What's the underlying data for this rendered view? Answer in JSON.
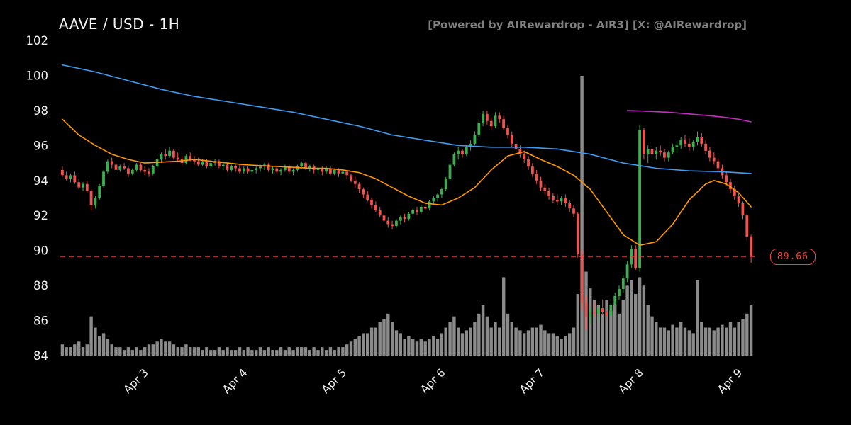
{
  "header": {
    "title": "AAVE / USD - 1H",
    "attribution": "[Powered by AIRewardrop - AIR3] [X: @AIRewardrop]"
  },
  "chart_data": {
    "type": "candlestick",
    "symbol": "AAVE/USD",
    "interval": "1H",
    "title": "AAVE / USD - 1H",
    "y_range": [
      84,
      102
    ],
    "y_ticks": [
      84,
      86,
      88,
      90,
      92,
      94,
      96,
      98,
      100,
      102
    ],
    "x_tick_labels": [
      "Apr 3",
      "Apr 4",
      "Apr 5",
      "Apr 6",
      "Apr 7",
      "Apr 8",
      "Apr 9"
    ],
    "x_tick_indices": [
      21,
      45,
      69,
      93,
      117,
      141,
      165
    ],
    "last_price": {
      "value": 89.66,
      "label": "89.66"
    },
    "candle_fields": [
      "open",
      "high",
      "low",
      "close",
      "volume_rel"
    ],
    "candles": [
      [
        94.6,
        94.8,
        94.2,
        94.3,
        4
      ],
      [
        94.3,
        94.5,
        94.0,
        94.1,
        3
      ],
      [
        94.1,
        94.4,
        93.9,
        94.3,
        3
      ],
      [
        94.3,
        94.5,
        93.8,
        93.9,
        4
      ],
      [
        93.9,
        94.1,
        93.5,
        93.6,
        5
      ],
      [
        93.6,
        93.9,
        93.4,
        93.8,
        3
      ],
      [
        93.8,
        94.0,
        93.3,
        93.4,
        4
      ],
      [
        93.4,
        93.5,
        92.3,
        92.6,
        14
      ],
      [
        92.6,
        93.1,
        92.4,
        93.0,
        10
      ],
      [
        93.0,
        93.8,
        92.9,
        93.7,
        7
      ],
      [
        93.7,
        94.6,
        93.6,
        94.5,
        8
      ],
      [
        94.5,
        95.2,
        94.4,
        95.1,
        6
      ],
      [
        95.1,
        95.3,
        94.7,
        94.9,
        4
      ],
      [
        94.9,
        95.0,
        94.4,
        94.6,
        3
      ],
      [
        94.6,
        94.9,
        94.5,
        94.8,
        3
      ],
      [
        94.8,
        95.0,
        94.6,
        94.7,
        2
      ],
      [
        94.7,
        94.8,
        94.2,
        94.4,
        3
      ],
      [
        94.4,
        94.7,
        94.3,
        94.6,
        2
      ],
      [
        94.6,
        95.0,
        94.5,
        94.9,
        3
      ],
      [
        94.9,
        95.0,
        94.5,
        94.6,
        2
      ],
      [
        94.6,
        94.8,
        94.3,
        94.5,
        3
      ],
      [
        94.5,
        94.7,
        94.2,
        94.4,
        4
      ],
      [
        94.4,
        94.9,
        94.3,
        94.8,
        4
      ],
      [
        94.8,
        95.3,
        94.7,
        95.2,
        5
      ],
      [
        95.2,
        95.6,
        95.0,
        95.5,
        6
      ],
      [
        95.5,
        95.8,
        95.2,
        95.4,
        5
      ],
      [
        95.4,
        95.9,
        95.3,
        95.7,
        5
      ],
      [
        95.7,
        95.8,
        95.2,
        95.3,
        4
      ],
      [
        95.3,
        95.6,
        95.1,
        95.2,
        3
      ],
      [
        95.2,
        95.4,
        94.9,
        95.0,
        3
      ],
      [
        95.0,
        95.5,
        94.9,
        95.4,
        4
      ],
      [
        95.4,
        95.6,
        95.1,
        95.2,
        3
      ],
      [
        95.2,
        95.4,
        94.9,
        95.1,
        3
      ],
      [
        95.1,
        95.3,
        94.8,
        94.9,
        3
      ],
      [
        94.9,
        95.2,
        94.8,
        95.1,
        2
      ],
      [
        95.1,
        95.2,
        94.7,
        94.8,
        3
      ],
      [
        94.8,
        95.1,
        94.7,
        95.0,
        2
      ],
      [
        95.0,
        95.2,
        94.8,
        95.1,
        2
      ],
      [
        95.1,
        95.2,
        94.7,
        94.8,
        3
      ],
      [
        94.8,
        95.0,
        94.6,
        94.9,
        2
      ],
      [
        94.9,
        95.0,
        94.5,
        94.6,
        3
      ],
      [
        94.6,
        94.9,
        94.5,
        94.8,
        2
      ],
      [
        94.8,
        94.9,
        94.5,
        94.7,
        2
      ],
      [
        94.7,
        94.9,
        94.4,
        94.5,
        3
      ],
      [
        94.5,
        94.8,
        94.4,
        94.7,
        2
      ],
      [
        94.7,
        94.8,
        94.4,
        94.5,
        3
      ],
      [
        94.5,
        94.7,
        94.3,
        94.6,
        2
      ],
      [
        94.6,
        94.8,
        94.4,
        94.7,
        2
      ],
      [
        94.7,
        94.9,
        94.5,
        94.8,
        3
      ],
      [
        94.8,
        95.0,
        94.6,
        94.9,
        2
      ],
      [
        94.9,
        95.0,
        94.5,
        94.6,
        3
      ],
      [
        94.6,
        94.8,
        94.4,
        94.7,
        2
      ],
      [
        94.7,
        94.8,
        94.4,
        94.5,
        2
      ],
      [
        94.5,
        94.7,
        94.3,
        94.6,
        3
      ],
      [
        94.6,
        94.9,
        94.5,
        94.8,
        2
      ],
      [
        94.8,
        94.9,
        94.4,
        94.5,
        3
      ],
      [
        94.5,
        94.7,
        94.3,
        94.6,
        2
      ],
      [
        94.6,
        94.9,
        94.5,
        94.8,
        3
      ],
      [
        94.8,
        95.1,
        94.7,
        95.0,
        3
      ],
      [
        95.0,
        95.1,
        94.6,
        94.7,
        3
      ],
      [
        94.7,
        94.9,
        94.5,
        94.8,
        2
      ],
      [
        94.8,
        94.9,
        94.4,
        94.6,
        3
      ],
      [
        94.6,
        94.8,
        94.4,
        94.7,
        2
      ],
      [
        94.7,
        94.8,
        94.3,
        94.5,
        3
      ],
      [
        94.5,
        94.8,
        94.4,
        94.7,
        2
      ],
      [
        94.7,
        94.8,
        94.3,
        94.4,
        3
      ],
      [
        94.4,
        94.7,
        94.3,
        94.6,
        2
      ],
      [
        94.6,
        94.7,
        94.2,
        94.4,
        3
      ],
      [
        94.4,
        94.6,
        94.2,
        94.5,
        3
      ],
      [
        94.5,
        94.6,
        94.1,
        94.3,
        4
      ],
      [
        94.3,
        94.4,
        93.9,
        94.0,
        5
      ],
      [
        94.0,
        94.2,
        93.6,
        93.8,
        6
      ],
      [
        93.8,
        93.9,
        93.3,
        93.5,
        7
      ],
      [
        93.5,
        93.6,
        93.0,
        93.2,
        8
      ],
      [
        93.2,
        93.4,
        92.8,
        92.9,
        8
      ],
      [
        92.9,
        93.0,
        92.4,
        92.6,
        10
      ],
      [
        92.6,
        92.8,
        92.2,
        92.3,
        10
      ],
      [
        92.3,
        92.5,
        91.9,
        92.0,
        12
      ],
      [
        92.0,
        92.1,
        91.5,
        91.7,
        13
      ],
      [
        91.7,
        91.9,
        91.3,
        91.5,
        15
      ],
      [
        91.5,
        91.7,
        91.2,
        91.4,
        12
      ],
      [
        91.4,
        91.8,
        91.3,
        91.7,
        9
      ],
      [
        91.7,
        92.0,
        91.5,
        91.9,
        8
      ],
      [
        91.9,
        92.1,
        91.6,
        91.8,
        6
      ],
      [
        91.8,
        92.2,
        91.7,
        92.1,
        7
      ],
      [
        92.1,
        92.4,
        92.0,
        92.3,
        6
      ],
      [
        92.3,
        92.5,
        92.0,
        92.2,
        5
      ],
      [
        92.2,
        92.6,
        92.1,
        92.5,
        6
      ],
      [
        92.5,
        92.8,
        92.3,
        92.4,
        5
      ],
      [
        92.4,
        92.9,
        92.3,
        92.8,
        6
      ],
      [
        92.8,
        93.1,
        92.6,
        93.0,
        7
      ],
      [
        93.0,
        93.3,
        92.8,
        93.2,
        6
      ],
      [
        93.2,
        93.6,
        93.0,
        93.5,
        8
      ],
      [
        93.5,
        94.2,
        93.4,
        94.1,
        10
      ],
      [
        94.1,
        95.0,
        94.0,
        94.9,
        12
      ],
      [
        94.9,
        95.6,
        94.8,
        95.5,
        14
      ],
      [
        95.5,
        95.9,
        95.2,
        95.7,
        10
      ],
      [
        95.7,
        95.8,
        95.3,
        95.5,
        8
      ],
      [
        95.5,
        96.0,
        95.4,
        95.9,
        9
      ],
      [
        95.9,
        96.3,
        95.7,
        96.1,
        10
      ],
      [
        96.1,
        96.8,
        96.0,
        96.6,
        12
      ],
      [
        96.6,
        97.5,
        96.5,
        97.3,
        15
      ],
      [
        97.3,
        98.0,
        97.1,
        97.8,
        18
      ],
      [
        97.8,
        98.0,
        97.2,
        97.4,
        14
      ],
      [
        97.4,
        97.6,
        96.9,
        97.1,
        10
      ],
      [
        97.1,
        97.9,
        97.0,
        97.7,
        12
      ],
      [
        97.7,
        97.9,
        97.3,
        97.5,
        10
      ],
      [
        97.5,
        97.7,
        96.9,
        97.0,
        28
      ],
      [
        97.0,
        97.2,
        96.4,
        96.6,
        15
      ],
      [
        96.6,
        96.8,
        95.9,
        96.1,
        12
      ],
      [
        96.1,
        96.3,
        95.6,
        95.8,
        10
      ],
      [
        95.8,
        96.0,
        95.3,
        95.5,
        9
      ],
      [
        95.5,
        95.7,
        95.0,
        95.2,
        8
      ],
      [
        95.2,
        95.4,
        94.6,
        94.8,
        9
      ],
      [
        94.8,
        95.0,
        94.2,
        94.4,
        10
      ],
      [
        94.4,
        94.6,
        93.8,
        94.0,
        10
      ],
      [
        94.0,
        94.2,
        93.4,
        93.6,
        11
      ],
      [
        93.6,
        93.8,
        93.2,
        93.4,
        9
      ],
      [
        93.4,
        93.6,
        92.9,
        93.1,
        8
      ],
      [
        93.1,
        93.3,
        92.7,
        92.9,
        8
      ],
      [
        92.9,
        93.2,
        92.6,
        92.8,
        7
      ],
      [
        92.8,
        93.1,
        92.6,
        93.0,
        6
      ],
      [
        93.0,
        93.2,
        92.5,
        92.7,
        7
      ],
      [
        92.7,
        92.9,
        92.2,
        92.4,
        8
      ],
      [
        92.4,
        92.6,
        91.9,
        92.1,
        10
      ],
      [
        92.1,
        92.2,
        89.6,
        89.8,
        22
      ],
      [
        89.8,
        90.0,
        86.6,
        87.0,
        100
      ],
      [
        87.0,
        87.4,
        85.5,
        86.2,
        30
      ],
      [
        86.2,
        86.8,
        85.8,
        86.5,
        24
      ],
      [
        86.5,
        87.0,
        86.2,
        86.4,
        20
      ],
      [
        86.4,
        86.9,
        86.0,
        86.7,
        18
      ],
      [
        86.7,
        87.2,
        86.3,
        86.5,
        15
      ],
      [
        86.5,
        86.8,
        86.0,
        86.3,
        20
      ],
      [
        86.3,
        87.0,
        86.2,
        86.9,
        16
      ],
      [
        86.9,
        87.6,
        86.7,
        87.4,
        18
      ],
      [
        87.4,
        88.0,
        87.2,
        87.8,
        15
      ],
      [
        87.8,
        88.6,
        87.6,
        88.4,
        20
      ],
      [
        88.4,
        89.4,
        88.2,
        89.2,
        25
      ],
      [
        89.2,
        90.3,
        89.0,
        90.1,
        27
      ],
      [
        90.1,
        90.3,
        88.9,
        89.0,
        22
      ],
      [
        89.0,
        97.2,
        88.8,
        96.9,
        28
      ],
      [
        96.9,
        97.0,
        95.2,
        95.5,
        25
      ],
      [
        95.5,
        96.0,
        95.0,
        95.8,
        18
      ],
      [
        95.8,
        96.1,
        95.3,
        95.5,
        14
      ],
      [
        95.5,
        95.9,
        95.2,
        95.7,
        12
      ],
      [
        95.7,
        96.0,
        95.4,
        95.6,
        10
      ],
      [
        95.6,
        95.8,
        95.1,
        95.3,
        10
      ],
      [
        95.3,
        95.7,
        95.1,
        95.6,
        9
      ],
      [
        95.6,
        96.1,
        95.5,
        95.9,
        11
      ],
      [
        95.9,
        96.2,
        95.6,
        96.0,
        10
      ],
      [
        96.0,
        96.5,
        95.8,
        96.3,
        12
      ],
      [
        96.3,
        96.6,
        95.9,
        96.1,
        10
      ],
      [
        96.1,
        96.4,
        95.7,
        95.9,
        9
      ],
      [
        95.9,
        96.3,
        95.7,
        96.2,
        8
      ],
      [
        96.2,
        96.8,
        96.0,
        96.5,
        27
      ],
      [
        96.5,
        96.7,
        95.9,
        96.1,
        12
      ],
      [
        96.1,
        96.3,
        95.5,
        95.7,
        10
      ],
      [
        95.7,
        95.9,
        95.1,
        95.3,
        10
      ],
      [
        95.3,
        95.6,
        94.9,
        95.1,
        9
      ],
      [
        95.1,
        95.3,
        94.5,
        94.7,
        10
      ],
      [
        94.7,
        94.9,
        94.1,
        94.3,
        11
      ],
      [
        94.3,
        94.5,
        93.7,
        93.9,
        10
      ],
      [
        93.9,
        94.1,
        93.3,
        93.5,
        12
      ],
      [
        93.5,
        93.7,
        92.9,
        93.1,
        10
      ],
      [
        93.1,
        93.3,
        92.5,
        92.7,
        12
      ],
      [
        92.7,
        92.8,
        91.8,
        92.0,
        13
      ],
      [
        92.0,
        92.1,
        90.6,
        90.8,
        15
      ],
      [
        90.8,
        90.9,
        89.3,
        89.66,
        18
      ]
    ],
    "overlays": [
      {
        "name": "ma-slow-blue",
        "color": "#3d9df3",
        "points": [
          [
            0,
            100.6
          ],
          [
            8,
            100.2
          ],
          [
            16,
            99.7
          ],
          [
            24,
            99.2
          ],
          [
            32,
            98.8
          ],
          [
            40,
            98.5
          ],
          [
            48,
            98.2
          ],
          [
            56,
            97.9
          ],
          [
            64,
            97.5
          ],
          [
            72,
            97.1
          ],
          [
            80,
            96.6
          ],
          [
            88,
            96.3
          ],
          [
            96,
            96.0
          ],
          [
            104,
            95.9
          ],
          [
            112,
            95.9
          ],
          [
            120,
            95.8
          ],
          [
            128,
            95.5
          ],
          [
            136,
            95.0
          ],
          [
            144,
            94.7
          ],
          [
            152,
            94.55
          ],
          [
            160,
            94.5
          ],
          [
            167,
            94.4
          ]
        ]
      },
      {
        "name": "ma-fast-orange",
        "color": "#ff9800",
        "points": [
          [
            0,
            97.5
          ],
          [
            4,
            96.6
          ],
          [
            8,
            96.0
          ],
          [
            12,
            95.5
          ],
          [
            16,
            95.2
          ],
          [
            20,
            95.0
          ],
          [
            24,
            95.05
          ],
          [
            28,
            95.1
          ],
          [
            32,
            95.2
          ],
          [
            36,
            95.1
          ],
          [
            40,
            95.0
          ],
          [
            44,
            94.9
          ],
          [
            48,
            94.85
          ],
          [
            52,
            94.8
          ],
          [
            56,
            94.75
          ],
          [
            60,
            94.7
          ],
          [
            64,
            94.7
          ],
          [
            68,
            94.6
          ],
          [
            72,
            94.45
          ],
          [
            76,
            94.1
          ],
          [
            80,
            93.6
          ],
          [
            84,
            93.1
          ],
          [
            88,
            92.7
          ],
          [
            92,
            92.6
          ],
          [
            96,
            93.0
          ],
          [
            100,
            93.6
          ],
          [
            104,
            94.6
          ],
          [
            108,
            95.4
          ],
          [
            112,
            95.65
          ],
          [
            116,
            95.2
          ],
          [
            120,
            94.8
          ],
          [
            124,
            94.3
          ],
          [
            128,
            93.5
          ],
          [
            132,
            92.2
          ],
          [
            136,
            90.9
          ],
          [
            140,
            90.3
          ],
          [
            144,
            90.5
          ],
          [
            148,
            91.5
          ],
          [
            152,
            92.9
          ],
          [
            156,
            93.8
          ],
          [
            158,
            94.0
          ],
          [
            161,
            93.8
          ],
          [
            164,
            93.3
          ],
          [
            167,
            92.5
          ]
        ]
      },
      {
        "name": "ma-magenta",
        "color": "#c32dc3",
        "points": [
          [
            137,
            98.0
          ],
          [
            142,
            97.95
          ],
          [
            147,
            97.9
          ],
          [
            152,
            97.8
          ],
          [
            157,
            97.7
          ],
          [
            161,
            97.6
          ],
          [
            164,
            97.5
          ],
          [
            167,
            97.35
          ]
        ]
      }
    ],
    "colors": {
      "background": "#000000",
      "up": "#3cae4f",
      "down": "#ef5350",
      "volume": "#9a9a9a",
      "dashed": "#f0433d",
      "tick_text": "#f0f0f0",
      "title_text": "#f5f5f5",
      "attribution_text": "#7e7e7e"
    },
    "legend": "none",
    "grid": false
  }
}
